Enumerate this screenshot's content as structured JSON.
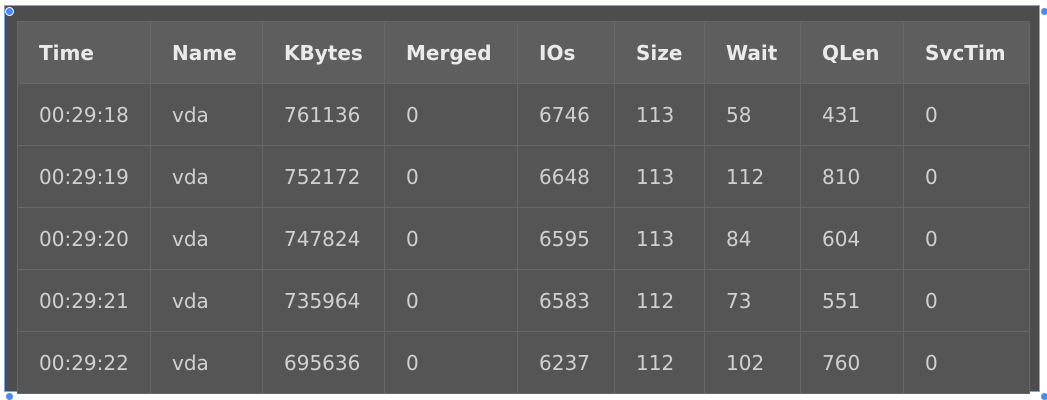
{
  "table": {
    "columns": [
      "Time",
      "Name",
      "KBytes",
      "Merged",
      "IOs",
      "Size",
      "Wait",
      "QLen",
      "SvcTim"
    ],
    "rows": [
      [
        "00:29:18",
        "vda",
        "761136",
        "0",
        "6746",
        "113",
        "58",
        "431",
        "0"
      ],
      [
        "00:29:19",
        "vda",
        "752172",
        "0",
        "6648",
        "113",
        "112",
        "810",
        "0"
      ],
      [
        "00:29:20",
        "vda",
        "747824",
        "0",
        "6595",
        "113",
        "84",
        "604",
        "0"
      ],
      [
        "00:29:21",
        "vda",
        "735964",
        "0",
        "6583",
        "112",
        "73",
        "551",
        "0"
      ],
      [
        "00:29:22",
        "vda",
        "695636",
        "0",
        "6237",
        "112",
        "102",
        "760",
        "0"
      ]
    ]
  },
  "colors": {
    "frame_bg": "#4d4d4d",
    "header_bg": "#5e5e5e",
    "cell_bg": "#555555",
    "grid_line": "#676767",
    "selection_border": "#7aa6f0",
    "handle": "#4a8af4"
  }
}
